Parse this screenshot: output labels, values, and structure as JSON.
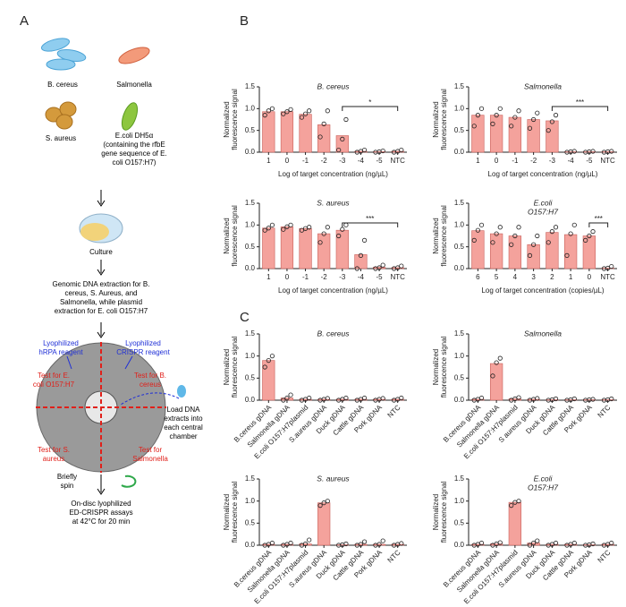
{
  "panel_labels": [
    "A",
    "B",
    "C"
  ],
  "panel_a": {
    "labels": [
      {
        "lines": [
          "B. cereus"
        ],
        "color": "#000"
      },
      {
        "lines": [
          "Salmonella"
        ],
        "color": "#000"
      },
      {
        "lines": [
          "S. aureus"
        ],
        "color": "#000"
      },
      {
        "lines": [
          "E.coli DH5α",
          "(containing the rfbE",
          "gene sequence of E.",
          "coli O157:H7)"
        ],
        "color": "#000"
      },
      {
        "lines": [
          "Culture"
        ],
        "color": "#000"
      },
      {
        "lines": [
          "Genomic DNA extraction for B.",
          "cereus, S. Aureus, and",
          "Salmonella, while plasmid",
          "extraction for E. coli O157:H7"
        ],
        "color": "#000"
      },
      {
        "lines": [
          "Lyophilized",
          "hRPA reagent"
        ],
        "color": "#1f2fd6"
      },
      {
        "lines": [
          "Lyophilized",
          "CRISPR reagent"
        ],
        "color": "#1f2fd6"
      },
      {
        "lines": [
          "Test for E.",
          "coli O157:H7"
        ],
        "color": "#e0201a"
      },
      {
        "lines": [
          "Test for B.",
          "cereus"
        ],
        "color": "#e0201a"
      },
      {
        "lines": [
          "Load DNA",
          "extracts into",
          "each central",
          "chamber"
        ],
        "color": "#000"
      },
      {
        "lines": [
          "Test for S.",
          "aureus"
        ],
        "color": "#e0201a"
      },
      {
        "lines": [
          "Test for",
          "Salmonella"
        ],
        "color": "#e0201a"
      },
      {
        "lines": [
          "Briefly",
          "spin"
        ],
        "color": "#000"
      },
      {
        "lines": [
          "On-disc lyophilized",
          "ED-CRISPR assays",
          "at 42°C for 20 min"
        ],
        "color": "#000"
      }
    ]
  },
  "chart_data": [
    {
      "type": "bar",
      "title": [
        "B. cereus"
      ],
      "ylabel": [
        "Normalized",
        "fluorescence signal"
      ],
      "xlabel": "Log of target concentration (ng/µL)",
      "categories": [
        "1",
        "0",
        "-1",
        "-2",
        "-3",
        "-4",
        "-5",
        "NTC"
      ],
      "values": [
        0.93,
        0.93,
        0.87,
        0.63,
        0.38,
        0.02,
        0.01,
        0.02
      ],
      "points": [
        [
          0.85,
          0.95,
          1.0
        ],
        [
          0.88,
          0.93,
          0.98
        ],
        [
          0.8,
          0.88,
          0.95
        ],
        [
          0.35,
          0.65,
          0.95
        ],
        [
          0.05,
          0.3,
          0.75
        ],
        [
          0.0,
          0.02,
          0.05
        ],
        [
          0.0,
          0.01,
          0.03
        ],
        [
          0.0,
          0.02,
          0.05
        ]
      ],
      "significance": "*",
      "color": "#f4a29c",
      "ylim": [
        0,
        1.5
      ],
      "yticks": [
        {
          "value": 0,
          "label": "0.0"
        },
        {
          "value": 0.5,
          "label": "0.5"
        },
        {
          "value": 1,
          "label": "1.0"
        },
        {
          "value": 1.5,
          "label": "1.5"
        }
      ]
    },
    {
      "type": "bar",
      "title": [
        "Salmonella"
      ],
      "ylabel": [
        "Normalized",
        "fluorescence signal"
      ],
      "xlabel": "Log of target concentration (ng/µL)",
      "categories": [
        "1",
        "0",
        "-1",
        "-2",
        "-3",
        "-4",
        "-5",
        "NTC"
      ],
      "values": [
        0.85,
        0.85,
        0.8,
        0.75,
        0.72,
        0.01,
        0.01,
        0.01
      ],
      "points": [
        [
          0.6,
          0.85,
          1.0
        ],
        [
          0.65,
          0.85,
          1.0
        ],
        [
          0.6,
          0.8,
          0.95
        ],
        [
          0.55,
          0.75,
          0.9
        ],
        [
          0.5,
          0.7,
          0.85
        ],
        [
          0.0,
          0.01,
          0.02
        ],
        [
          0.0,
          0.01,
          0.02
        ],
        [
          0.0,
          0.01,
          0.02
        ]
      ],
      "significance": "***",
      "color": "#f4a29c",
      "ylim": [
        0,
        1.5
      ],
      "yticks": [
        {
          "value": 0,
          "label": "0.0"
        },
        {
          "value": 0.5,
          "label": "0.5"
        },
        {
          "value": 1,
          "label": "1.0"
        },
        {
          "value": 1.5,
          "label": "1.5"
        }
      ]
    },
    {
      "type": "bar",
      "title": [
        "S. aureus"
      ],
      "ylabel": [
        "Normalized",
        "fluorescence signal"
      ],
      "xlabel": "Log of target concentration (ng/µL)",
      "categories": [
        "1",
        "0",
        "-1",
        "-2",
        "-3",
        "-4",
        "-5",
        "NTC"
      ],
      "values": [
        0.93,
        0.96,
        0.92,
        0.8,
        0.88,
        0.32,
        0.03,
        0.02
      ],
      "points": [
        [
          0.88,
          0.93,
          1.0
        ],
        [
          0.9,
          0.96,
          1.0
        ],
        [
          0.88,
          0.92,
          0.95
        ],
        [
          0.6,
          0.8,
          0.95
        ],
        [
          0.75,
          0.9,
          1.0
        ],
        [
          0.0,
          0.3,
          0.65
        ],
        [
          0.0,
          0.02,
          0.08
        ],
        [
          0.0,
          0.02,
          0.06
        ]
      ],
      "significance": "***",
      "color": "#f4a29c",
      "ylim": [
        0,
        1.5
      ],
      "yticks": [
        {
          "value": 0,
          "label": "0.0"
        },
        {
          "value": 0.5,
          "label": "0.5"
        },
        {
          "value": 1,
          "label": "1.0"
        },
        {
          "value": 1.5,
          "label": "1.5"
        }
      ]
    },
    {
      "type": "bar",
      "title": [
        "E.coli",
        "O157:H7"
      ],
      "ylabel": [
        "Normalized",
        "fluorescence signal"
      ],
      "xlabel": "Log of target concentration (copies/µL)",
      "categories": [
        "6",
        "5",
        "4",
        "3",
        "2",
        "1",
        "0",
        "NTC"
      ],
      "values": [
        0.87,
        0.8,
        0.75,
        0.55,
        0.83,
        0.78,
        0.75,
        0.01
      ],
      "points": [
        [
          0.65,
          0.88,
          1.0
        ],
        [
          0.6,
          0.8,
          0.95
        ],
        [
          0.55,
          0.75,
          0.95
        ],
        [
          0.3,
          0.55,
          0.75
        ],
        [
          0.6,
          0.85,
          0.95
        ],
        [
          0.3,
          0.8,
          1.0
        ],
        [
          0.65,
          0.75,
          0.85
        ],
        [
          0.0,
          0.01,
          0.05
        ]
      ],
      "significance": "***",
      "color": "#f4a29c",
      "ylim": [
        0,
        1.5
      ],
      "yticks": [
        {
          "value": 0,
          "label": "0.0"
        },
        {
          "value": 0.5,
          "label": "0.5"
        },
        {
          "value": 1,
          "label": "1.0"
        },
        {
          "value": 1.5,
          "label": "1.5"
        }
      ]
    },
    {
      "type": "bar",
      "title": [
        "B. cereus"
      ],
      "ylabel": [
        "Normalized",
        "fluorescence signal"
      ],
      "categories": [
        "B.cereus gDNA",
        "Salmonella gDNA",
        "E.coli O157:H7plasmid",
        "S.aureus gDNA",
        "Duck gDNA",
        "Cattle gDNA",
        "Pork gDNA",
        "NTC"
      ],
      "values": [
        0.9,
        0.05,
        0.02,
        0.02,
        0.02,
        0.02,
        0.02,
        0.02
      ],
      "points": [
        [
          0.75,
          0.9,
          1.0
        ],
        [
          0.0,
          0.05,
          0.12
        ],
        [
          0.0,
          0.02,
          0.05
        ],
        [
          0.0,
          0.02,
          0.04
        ],
        [
          0.0,
          0.02,
          0.05
        ],
        [
          0.0,
          0.02,
          0.05
        ],
        [
          0.0,
          0.02,
          0.04
        ],
        [
          0.0,
          0.02,
          0.05
        ]
      ],
      "color": "#f4a29c",
      "ylim": [
        0,
        1.5
      ],
      "yticks": [
        {
          "value": 0,
          "label": "0.0"
        },
        {
          "value": 0.5,
          "label": "0.5"
        },
        {
          "value": 1,
          "label": "1.0"
        },
        {
          "value": 1.5,
          "label": "1.5"
        }
      ]
    },
    {
      "type": "bar",
      "title": [
        "Salmonella"
      ],
      "ylabel": [
        "Normalized",
        "fluorescence signal"
      ],
      "categories": [
        "B.cereus gDNA",
        "Salmonella gDNA",
        "E.coli O157:H7plasmid",
        "S aureus gDNA",
        "Duck gDNA",
        "Cattle gDNA",
        "Pork gDNA",
        "NTC"
      ],
      "values": [
        0.02,
        0.83,
        0.03,
        0.02,
        0.01,
        0.01,
        0.01,
        0.01
      ],
      "points": [
        [
          0.0,
          0.02,
          0.05
        ],
        [
          0.55,
          0.85,
          0.95
        ],
        [
          0.0,
          0.03,
          0.06
        ],
        [
          0.0,
          0.02,
          0.04
        ],
        [
          0.0,
          0.01,
          0.03
        ],
        [
          0.0,
          0.01,
          0.03
        ],
        [
          0.0,
          0.01,
          0.02
        ],
        [
          0.0,
          0.01,
          0.03
        ]
      ],
      "color": "#f4a29c",
      "ylim": [
        0,
        1.5
      ],
      "yticks": [
        {
          "value": 0,
          "label": "0.0"
        },
        {
          "value": 0.5,
          "label": "0.5"
        },
        {
          "value": 1,
          "label": "1.0"
        },
        {
          "value": 1.5,
          "label": "1.5"
        }
      ]
    },
    {
      "type": "bar",
      "title": [
        "S. aureus"
      ],
      "ylabel": [
        "Normalized",
        "fluorescence signal"
      ],
      "categories": [
        "B.cereus gDNA",
        "Salmonella gDNA",
        "E.coli O157:H7plasmid",
        "S.aureus gDNA",
        "Duck gDNA",
        "Cattle gDNA",
        "Pork gDNA",
        "NTC"
      ],
      "values": [
        0.02,
        0.02,
        0.03,
        0.96,
        0.01,
        0.02,
        0.02,
        0.02
      ],
      "points": [
        [
          0.0,
          0.02,
          0.05
        ],
        [
          0.0,
          0.02,
          0.05
        ],
        [
          0.0,
          0.03,
          0.12
        ],
        [
          0.9,
          0.96,
          1.0
        ],
        [
          0.0,
          0.01,
          0.03
        ],
        [
          0.0,
          0.02,
          0.08
        ],
        [
          0.0,
          0.02,
          0.1
        ],
        [
          0.0,
          0.02,
          0.04
        ]
      ],
      "color": "#f4a29c",
      "ylim": [
        0,
        1.5
      ],
      "yticks": [
        {
          "value": 0,
          "label": "0.0"
        },
        {
          "value": 0.5,
          "label": "0.5"
        },
        {
          "value": 1,
          "label": "1.0"
        },
        {
          "value": 1.5,
          "label": "1.5"
        }
      ]
    },
    {
      "type": "bar",
      "title": [
        "E.coli",
        "O157:H7"
      ],
      "ylabel": [
        "Normalized",
        "fluorescence signal"
      ],
      "categories": [
        "B.cereus gDNA",
        "Salmonella gDNA",
        "E.coli O157:H7plasmid",
        "S.aureus gDNA",
        "Duck gDNA",
        "Cattle gDNA",
        "Pork gDNA",
        "NTC"
      ],
      "values": [
        0.02,
        0.03,
        0.97,
        0.05,
        0.02,
        0.02,
        0.01,
        0.02
      ],
      "points": [
        [
          0.0,
          0.02,
          0.05
        ],
        [
          0.0,
          0.03,
          0.06
        ],
        [
          0.9,
          0.97,
          1.0
        ],
        [
          0.0,
          0.05,
          0.1
        ],
        [
          0.0,
          0.02,
          0.05
        ],
        [
          0.0,
          0.02,
          0.05
        ],
        [
          0.0,
          0.01,
          0.03
        ],
        [
          0.0,
          0.02,
          0.05
        ]
      ],
      "color": "#f4a29c",
      "ylim": [
        0,
        1.5
      ],
      "yticks": [
        {
          "value": 0,
          "label": "0.0"
        },
        {
          "value": 0.5,
          "label": "0.5"
        },
        {
          "value": 1,
          "label": "1.0"
        },
        {
          "value": 1.5,
          "label": "1.5"
        }
      ]
    }
  ]
}
